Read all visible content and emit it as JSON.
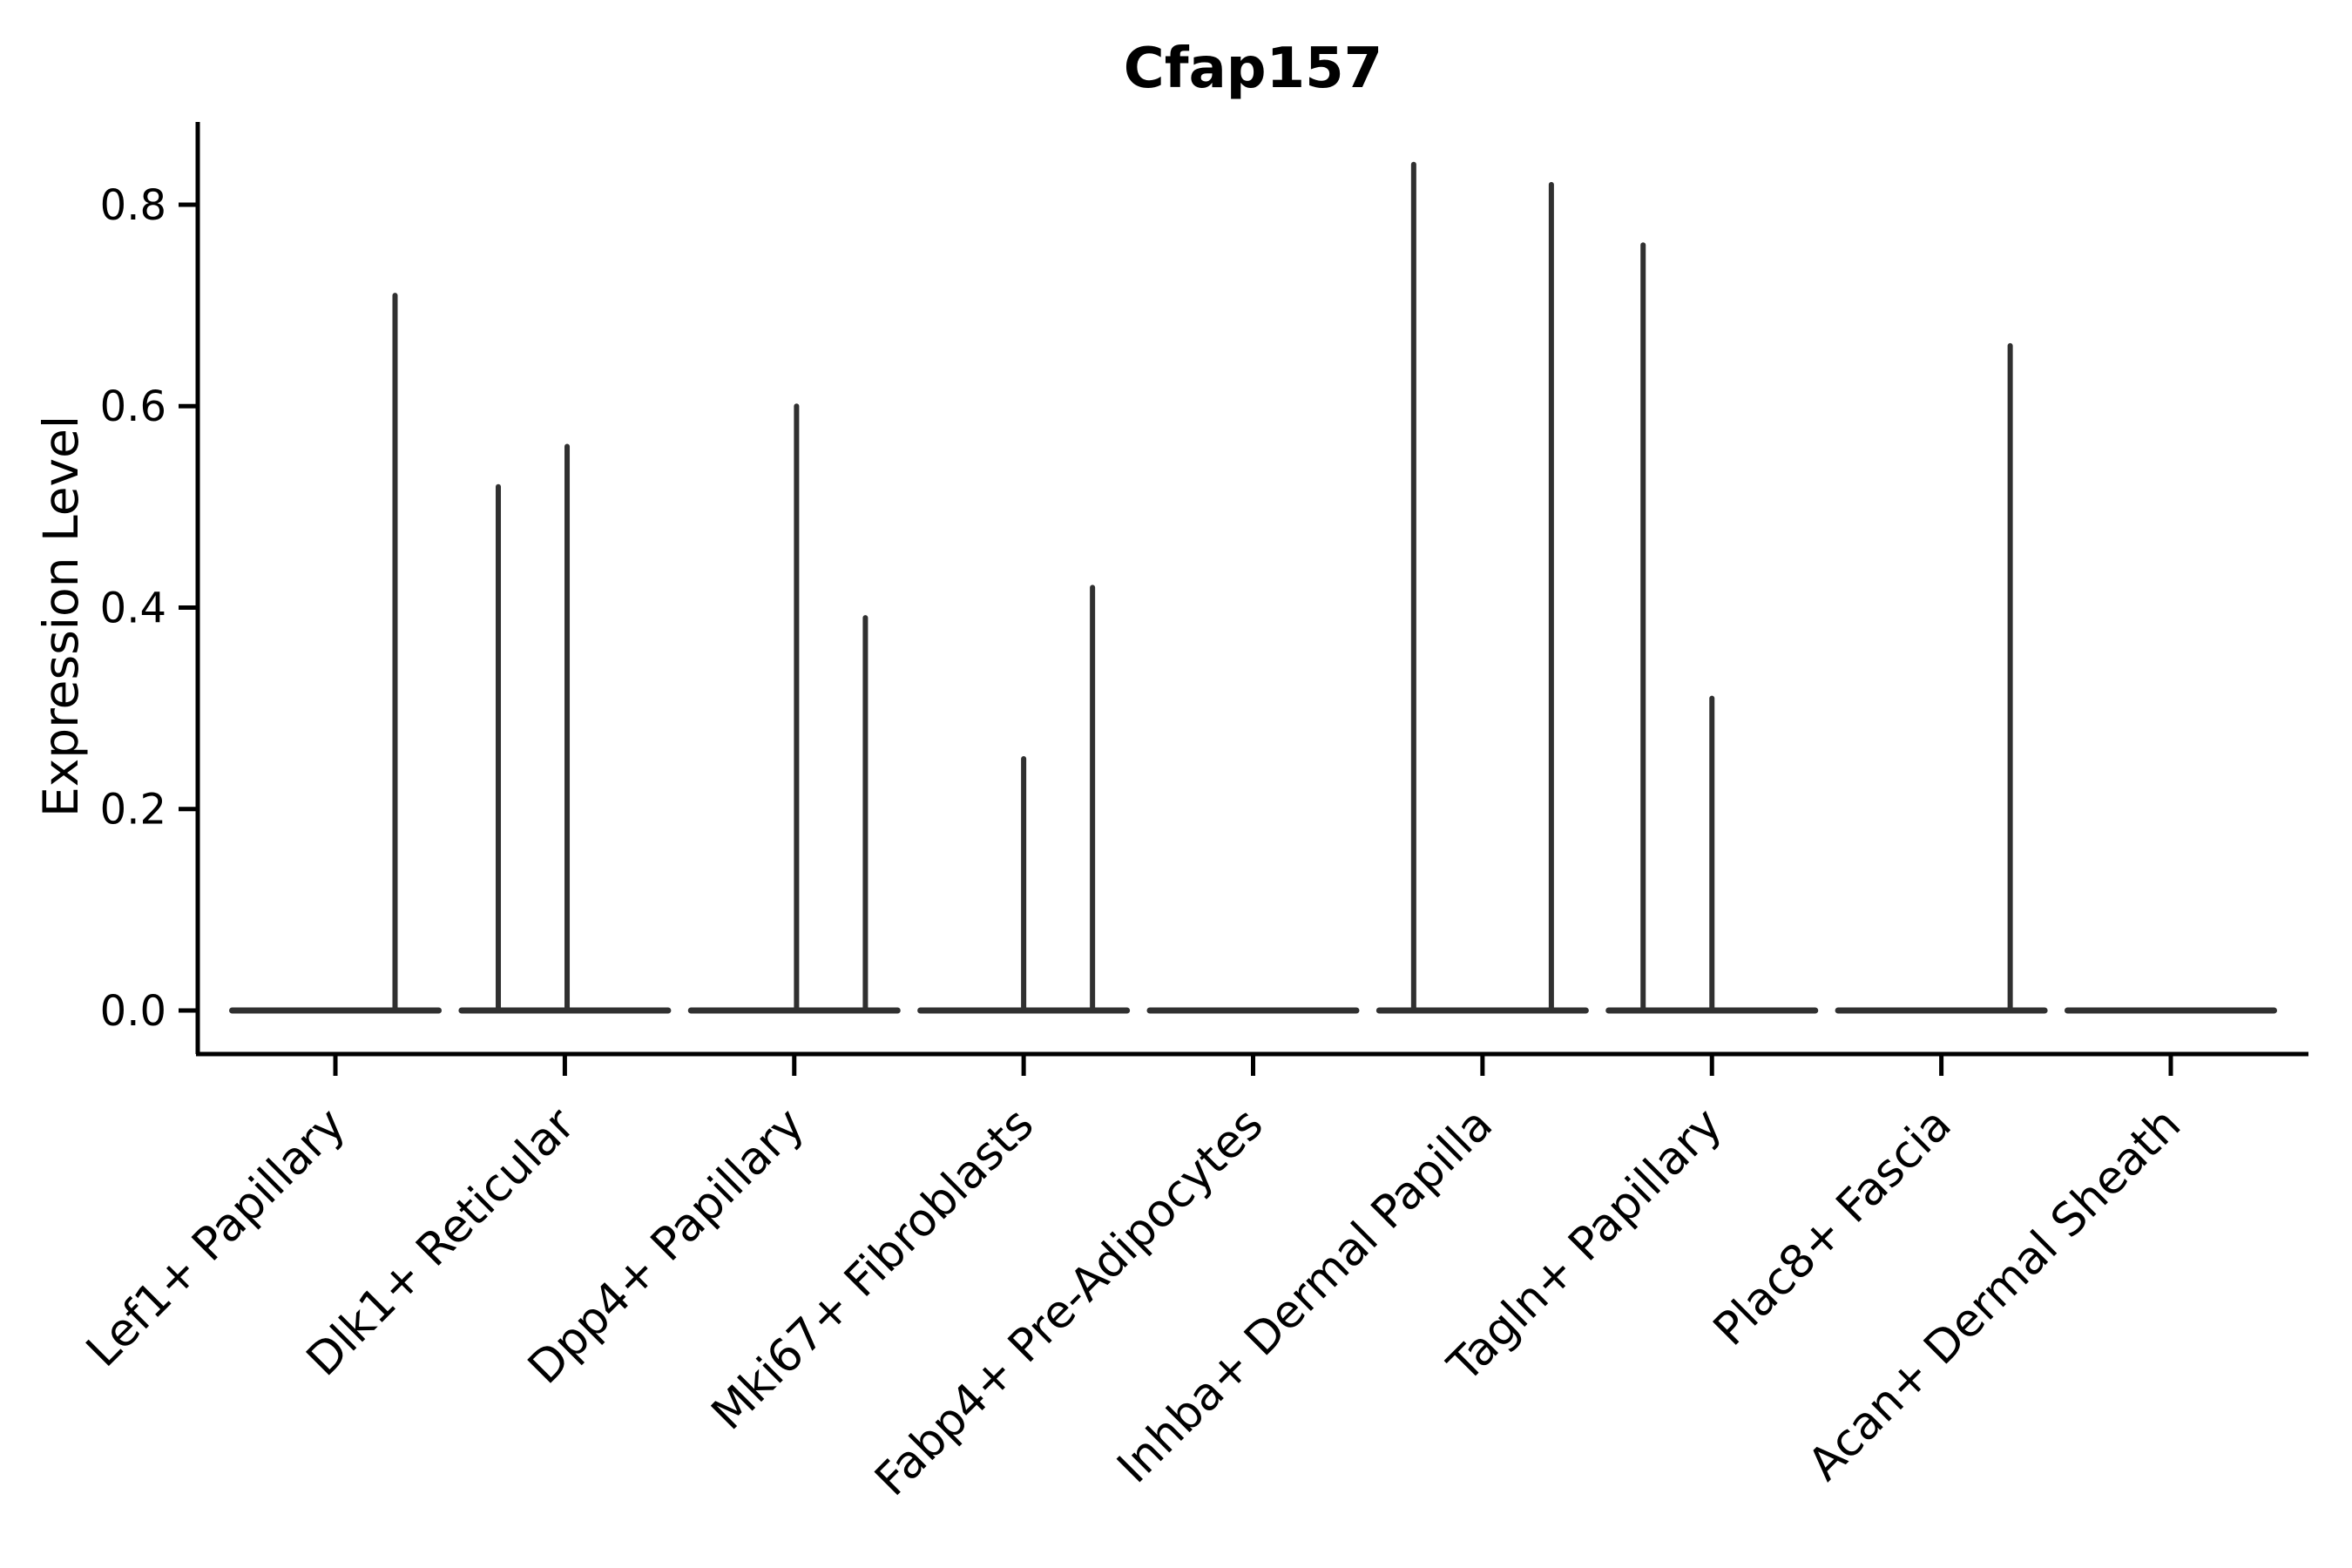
{
  "chart_data": {
    "type": "violin",
    "title": "Cfap157",
    "xlabel": "",
    "ylabel": "Expression Level",
    "legend": "none",
    "grid": false,
    "background_color": "#ffffff",
    "axis_color": "#000000",
    "violin_color": "#303030",
    "ylim": [
      -0.04,
      0.88
    ],
    "yticks": [
      0.0,
      0.2,
      0.4,
      0.6,
      0.8
    ],
    "ytick_labels": [
      "0.0",
      "0.2",
      "0.4",
      "0.6",
      "0.8"
    ],
    "categories": [
      "Lef1+ Papillary",
      "Dlk1+ Reticular",
      "Dpp4+ Papillary",
      "Mki67+ Fibroblasts",
      "Fabp4+ Pre-Adipocytes",
      "Inhba+ Dermal Papilla",
      "Tagln+ Papillary",
      "Plac8+ Fascia",
      "Acan+ Dermal Sheath"
    ],
    "violins": [
      {
        "category": "Lef1+ Papillary",
        "baseline_value": 0.0,
        "spikes": [
          {
            "offset": 0.26,
            "value": 0.71
          }
        ]
      },
      {
        "category": "Dlk1+ Reticular",
        "baseline_value": 0.0,
        "spikes": [
          {
            "offset": -0.29,
            "value": 0.52
          },
          {
            "offset": 0.01,
            "value": 0.56
          }
        ]
      },
      {
        "category": "Dpp4+ Papillary",
        "baseline_value": 0.0,
        "spikes": [
          {
            "offset": 0.01,
            "value": 0.6
          },
          {
            "offset": 0.31,
            "value": 0.39
          }
        ]
      },
      {
        "category": "Mki67+ Fibroblasts",
        "baseline_value": 0.0,
        "spikes": [
          {
            "offset": 0.0,
            "value": 0.25
          },
          {
            "offset": 0.3,
            "value": 0.42
          }
        ]
      },
      {
        "category": "Fabp4+ Pre-Adipocytes",
        "baseline_value": 0.0,
        "spikes": []
      },
      {
        "category": "Inhba+ Dermal Papilla",
        "baseline_value": 0.0,
        "spikes": [
          {
            "offset": -0.3,
            "value": 0.84
          },
          {
            "offset": 0.3,
            "value": 0.82
          }
        ]
      },
      {
        "category": "Tagln+ Papillary",
        "baseline_value": 0.0,
        "spikes": [
          {
            "offset": -0.3,
            "value": 0.76
          },
          {
            "offset": 0.0,
            "value": 0.31
          }
        ]
      },
      {
        "category": "Plac8+ Fascia",
        "baseline_value": 0.0,
        "spikes": [
          {
            "offset": 0.3,
            "value": 0.66
          }
        ]
      },
      {
        "category": "Acan+ Dermal Sheath",
        "baseline_value": 0.0,
        "spikes": []
      }
    ],
    "violin_body_width": 0.9
  }
}
